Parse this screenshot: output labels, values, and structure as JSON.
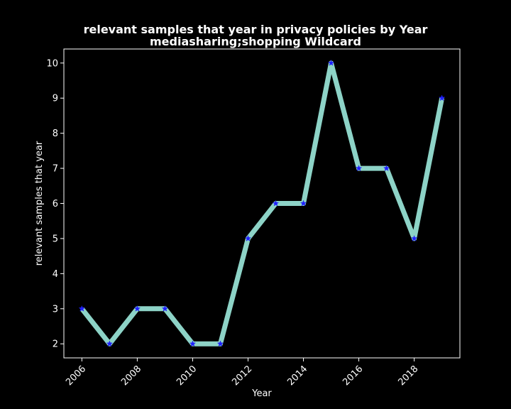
{
  "chart_data": {
    "type": "line",
    "title": "relevant samples that year in privacy policies by Year",
    "subtitle": "mediasharing;shopping Wildcard",
    "xlabel": "Year",
    "ylabel": "relevant samples that year",
    "x": [
      2006,
      2007,
      2008,
      2009,
      2010,
      2011,
      2012,
      2013,
      2014,
      2015,
      2016,
      2017,
      2018,
      2019
    ],
    "values": [
      3,
      2,
      3,
      3,
      2,
      2,
      5,
      6,
      6,
      10,
      7,
      7,
      5,
      9
    ],
    "xlim": [
      2005.35,
      2019.65
    ],
    "ylim": [
      1.6,
      10.4
    ],
    "xticks": [
      2006,
      2008,
      2010,
      2012,
      2014,
      2016,
      2018
    ],
    "yticks": [
      2,
      3,
      4,
      5,
      6,
      7,
      8,
      9,
      10
    ],
    "grid": false,
    "line_color": "#8dd3c7",
    "marker_color": "#1f1fff",
    "marker": "star",
    "background": "#000000",
    "axis_color": "#ffffff"
  }
}
